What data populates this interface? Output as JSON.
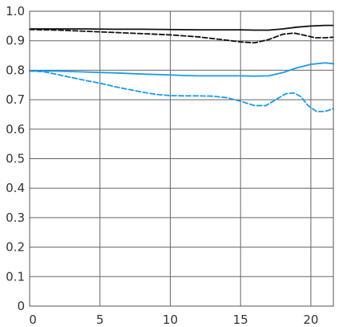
{
  "chart_data": {
    "type": "line",
    "title": "",
    "xlabel": "",
    "ylabel": "",
    "xlim": [
      0,
      21.6
    ],
    "ylim": [
      0,
      1.0
    ],
    "grid": true,
    "x_ticks": [
      0,
      5,
      10,
      15,
      20
    ],
    "x_tick_labels": [
      "0",
      "5",
      "10",
      "15",
      "20"
    ],
    "y_ticks": [
      0,
      0.1,
      0.2,
      0.3,
      0.4,
      0.5,
      0.6,
      0.7,
      0.8,
      0.9,
      1.0
    ],
    "y_tick_labels": [
      "0",
      "0.1",
      "0.2",
      "0.3",
      "0.4",
      "0.5",
      "0.6",
      "0.7",
      "0.8",
      "0.9",
      "1.0"
    ],
    "series": [
      {
        "color": "#111111",
        "style": "solid",
        "points": [
          [
            0,
            0.94
          ],
          [
            2,
            0.94
          ],
          [
            4,
            0.94
          ],
          [
            6,
            0.939
          ],
          [
            8,
            0.939
          ],
          [
            10,
            0.938
          ],
          [
            12,
            0.937
          ],
          [
            14,
            0.937
          ],
          [
            15,
            0.937
          ],
          [
            16,
            0.936
          ],
          [
            17,
            0.936
          ],
          [
            18,
            0.94
          ],
          [
            19,
            0.946
          ],
          [
            20,
            0.95
          ],
          [
            21,
            0.952
          ],
          [
            21.6,
            0.952
          ]
        ]
      },
      {
        "color": "#111111",
        "style": "dashed",
        "points": [
          [
            0,
            0.938
          ],
          [
            2,
            0.936
          ],
          [
            4,
            0.932
          ],
          [
            6,
            0.928
          ],
          [
            8,
            0.924
          ],
          [
            10,
            0.92
          ],
          [
            12,
            0.913
          ],
          [
            14,
            0.902
          ],
          [
            15,
            0.896
          ],
          [
            16,
            0.893
          ],
          [
            17,
            0.904
          ],
          [
            18,
            0.922
          ],
          [
            18.8,
            0.926
          ],
          [
            19.5,
            0.919
          ],
          [
            20.3,
            0.91
          ],
          [
            21,
            0.91
          ],
          [
            21.6,
            0.912
          ]
        ]
      },
      {
        "color": "#1a9be8",
        "style": "solid",
        "points": [
          [
            0,
            0.798
          ],
          [
            2,
            0.797
          ],
          [
            4,
            0.794
          ],
          [
            6,
            0.791
          ],
          [
            8,
            0.787
          ],
          [
            10,
            0.784
          ],
          [
            11,
            0.782
          ],
          [
            12,
            0.781
          ],
          [
            14,
            0.781
          ],
          [
            15,
            0.781
          ],
          [
            16,
            0.78
          ],
          [
            17,
            0.781
          ],
          [
            18,
            0.792
          ],
          [
            19,
            0.808
          ],
          [
            20,
            0.82
          ],
          [
            21,
            0.825
          ],
          [
            21.6,
            0.822
          ]
        ]
      },
      {
        "color": "#1a9be8",
        "style": "dashed",
        "points": [
          [
            0,
            0.797
          ],
          [
            1,
            0.795
          ],
          [
            2,
            0.785
          ],
          [
            3,
            0.775
          ],
          [
            4,
            0.765
          ],
          [
            5,
            0.756
          ],
          [
            6,
            0.745
          ],
          [
            7,
            0.735
          ],
          [
            8,
            0.726
          ],
          [
            9,
            0.718
          ],
          [
            10,
            0.714
          ],
          [
            11,
            0.713
          ],
          [
            12,
            0.713
          ],
          [
            13,
            0.712
          ],
          [
            14,
            0.707
          ],
          [
            15,
            0.695
          ],
          [
            16,
            0.68
          ],
          [
            16.8,
            0.68
          ],
          [
            17.5,
            0.7
          ],
          [
            18.2,
            0.72
          ],
          [
            18.8,
            0.723
          ],
          [
            19.3,
            0.71
          ],
          [
            19.8,
            0.68
          ],
          [
            20.4,
            0.66
          ],
          [
            21,
            0.66
          ],
          [
            21.6,
            0.67
          ]
        ]
      }
    ]
  }
}
